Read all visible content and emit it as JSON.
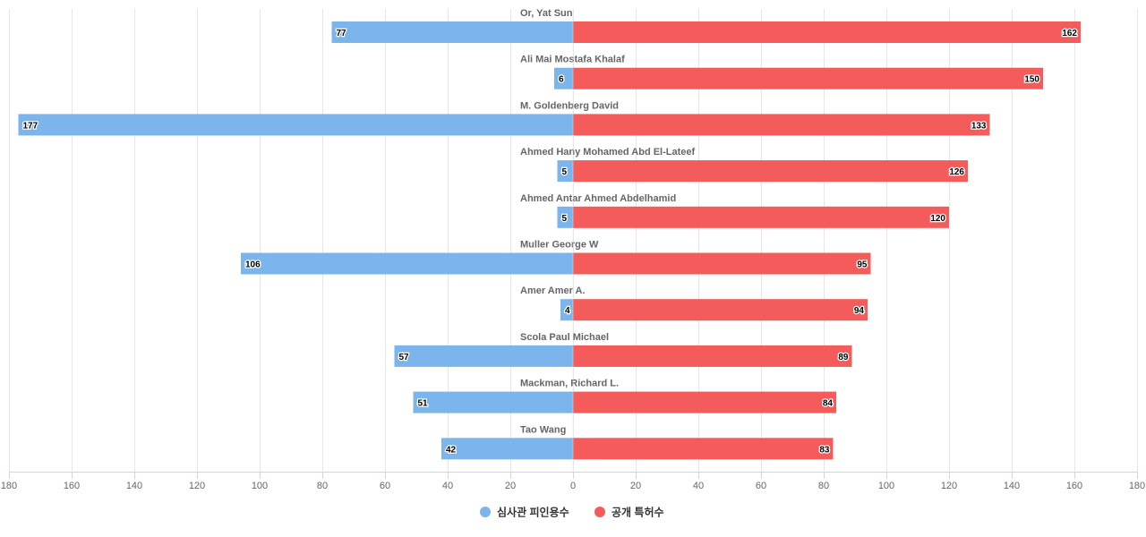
{
  "chart_data": {
    "type": "bar",
    "orientation": "horizontal",
    "layout": "butterfly",
    "categories": [
      "Or, Yat Sun",
      "Ali Mai Mostafa Khalaf",
      "M. Goldenberg David",
      "Ahmed Hany Mohamed Abd El-Lateef",
      "Ahmed Antar Ahmed Abdelhamid",
      "Muller George W",
      "Amer Amer A.",
      "Scola Paul Michael",
      "Mackman, Richard L.",
      "Tao Wang"
    ],
    "series": [
      {
        "name": "심사관 피인용수",
        "color": "#7cb5ec",
        "side": "left",
        "values": [
          77,
          6,
          177,
          5,
          5,
          106,
          4,
          57,
          51,
          42
        ]
      },
      {
        "name": "공개 특허수",
        "color": "#f45b5b",
        "side": "right",
        "values": [
          162,
          150,
          133,
          126,
          120,
          95,
          94,
          89,
          84,
          83
        ]
      }
    ],
    "xlim": [
      -180,
      180
    ],
    "x_ticks": [
      -180,
      -160,
      -140,
      -120,
      -100,
      -80,
      -60,
      -40,
      -20,
      0,
      20,
      40,
      60,
      80,
      100,
      120,
      140,
      160,
      180
    ],
    "x_tick_labels": [
      "180",
      "160",
      "140",
      "120",
      "100",
      "80",
      "60",
      "40",
      "20",
      "0",
      "20",
      "40",
      "60",
      "80",
      "100",
      "120",
      "140",
      "160",
      "180"
    ],
    "grid": true,
    "legend_position": "bottom-center",
    "title": "",
    "xlabel": "",
    "ylabel": ""
  }
}
